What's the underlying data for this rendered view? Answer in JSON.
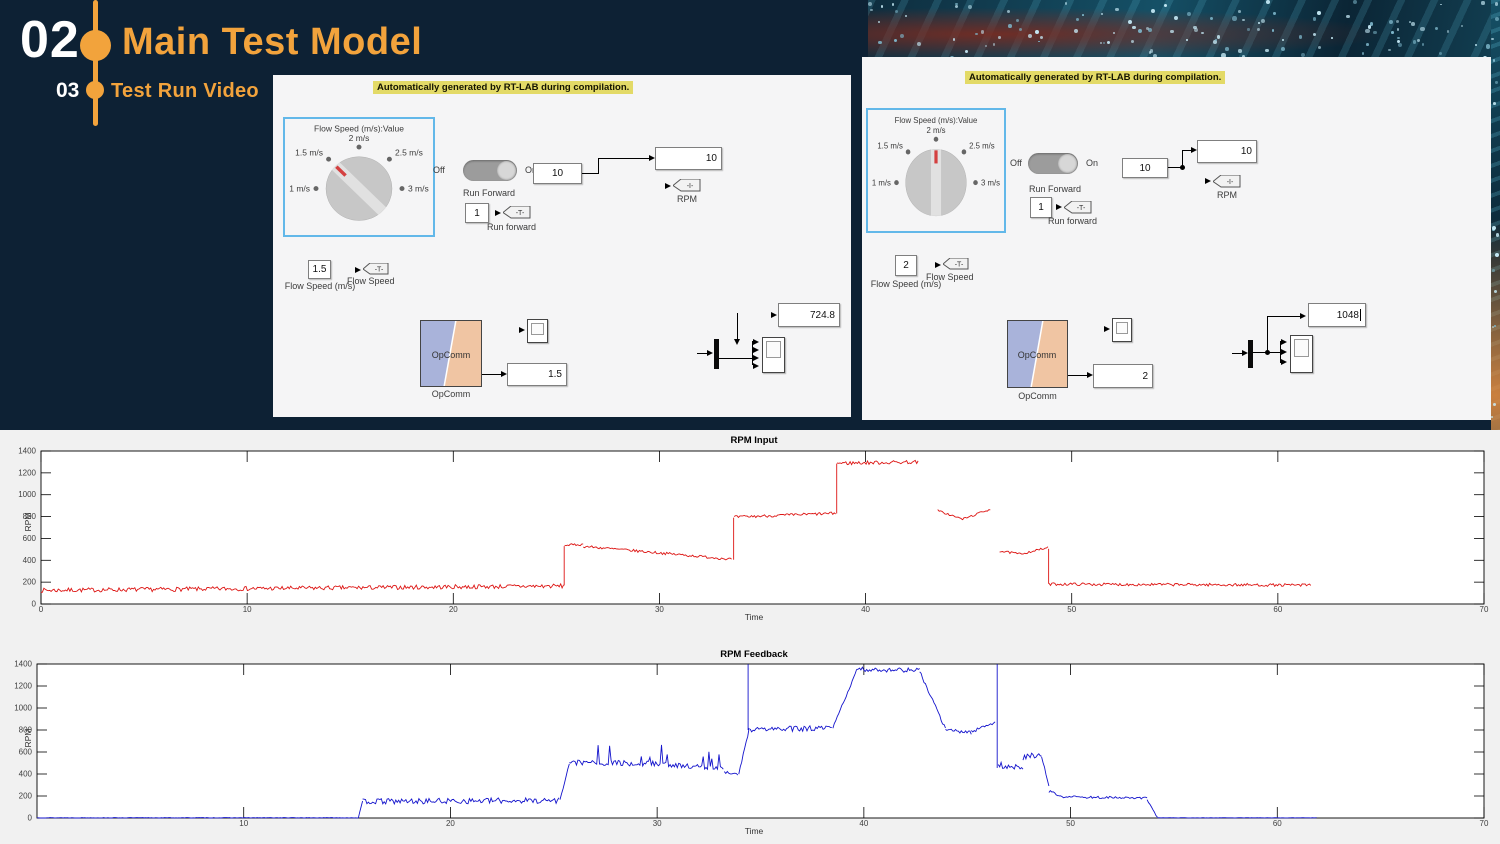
{
  "slide": {
    "number": "02",
    "title": "Main Test Model",
    "sub_number": "03",
    "subtitle": "Test Run Video",
    "accent_color": "#f2a33c",
    "background_color": "#0d2134"
  },
  "panels": {
    "left": {
      "annotation": "Automatically generated by RT-LAB during compilation.",
      "knob": {
        "title": "Flow Speed (m/s):Value",
        "labels": [
          "1 m/s",
          "1.5 m/s",
          "2 m/s",
          "2.5 m/s",
          "3 m/s"
        ],
        "selected": "1.5 m/s",
        "angle_deg": -45
      },
      "toggle": {
        "off": "Off",
        "on": "On",
        "state": "On",
        "label": "Run Forward"
      },
      "run_const": "1",
      "run_tag": "-T-",
      "run_tag_label": "Run forward",
      "rpm_const": "10",
      "rpm_display": "10",
      "rpm_tag": "-I-",
      "rpm_label": "RPM",
      "flow_const": "1.5",
      "flow_const_label": "Flow Speed (m/s)",
      "flow_tag": "-T-",
      "flow_tag_label": "Flow Speed",
      "opcomm_label": "OpComm",
      "opcomm_caption": "OpComm",
      "opcomm_display": "1.5",
      "big_display": "724.8"
    },
    "right": {
      "annotation": "Automatically generated by RT-LAB during compilation.",
      "knob": {
        "title": "Flow Speed (m/s):Value",
        "labels": [
          "1 m/s",
          "1.5 m/s",
          "2 m/s",
          "2.5 m/s",
          "3 m/s"
        ],
        "selected": "2 m/s",
        "angle_deg": 0
      },
      "toggle": {
        "off": "Off",
        "on": "On",
        "state": "On",
        "label": "Run Forward"
      },
      "run_const": "1",
      "run_tag": "-T-",
      "run_tag_label": "Run forward",
      "rpm_const": "10",
      "rpm_display": "10",
      "rpm_tag": "-I-",
      "rpm_label": "RPM",
      "flow_const": "2",
      "flow_const_label": "Flow Speed (m/s)",
      "flow_tag": "-T-",
      "flow_tag_label": "Flow Speed",
      "opcomm_label": "OpComm",
      "opcomm_caption": "OpComm",
      "opcomm_display": "2",
      "big_display": "1048"
    }
  },
  "chart_data": [
    {
      "type": "line",
      "title": "RPM Input",
      "xlabel": "Time",
      "ylabel": "RPM",
      "xlim": [
        0,
        70
      ],
      "ylim": [
        0,
        1400
      ],
      "xticks": [
        0,
        10,
        20,
        30,
        40,
        50,
        60,
        70
      ],
      "yticks": [
        0,
        200,
        400,
        600,
        800,
        1000,
        1200,
        1400
      ],
      "grid": false,
      "color": "#dd1513",
      "seed": 7,
      "segment_format": [
        "x_start",
        "x_end",
        "y_start",
        "y_end",
        "noise_amp",
        "spike_prob",
        "spike_amp"
      ],
      "segments": [
        [
          0,
          25.35,
          125,
          165,
          20,
          0,
          0
        ],
        [
          25.4,
          26.3,
          538,
          545,
          10,
          0,
          0
        ],
        [
          26.3,
          33.5,
          528,
          410,
          12,
          0,
          0
        ],
        [
          33.62,
          38.55,
          795,
          830,
          13,
          0,
          0
        ],
        [
          38.62,
          42.55,
          1288,
          1300,
          17,
          0,
          0
        ],
        [
          43.5,
          44.7,
          855,
          775,
          10,
          0,
          0
        ],
        [
          44.7,
          46.05,
          775,
          868,
          10,
          0,
          0
        ],
        [
          46.5,
          47.5,
          483,
          458,
          10,
          0,
          0
        ],
        [
          47.5,
          48.85,
          458,
          515,
          10,
          0,
          0
        ],
        [
          48.9,
          61.6,
          182,
          172,
          13,
          0,
          0
        ]
      ],
      "vlines": [
        [
          25.38,
          170,
          530
        ],
        [
          33.6,
          405,
          790
        ],
        [
          38.6,
          828,
          1285
        ],
        [
          48.88,
          505,
          185
        ]
      ]
    },
    {
      "type": "line",
      "title": "RPM Feedback",
      "xlabel": "Time",
      "ylabel": "RPM",
      "xlim": [
        0,
        70
      ],
      "ylim": [
        0,
        1400
      ],
      "xticks": [
        10,
        20,
        30,
        40,
        50,
        60,
        70
      ],
      "yticks": [
        0,
        200,
        400,
        600,
        800,
        1000,
        1200,
        1400
      ],
      "grid": false,
      "color": "#1414cc",
      "seed": 13,
      "segment_format": [
        "x_start",
        "x_end",
        "y_start",
        "y_end",
        "noise_amp",
        "spike_prob",
        "spike_amp"
      ],
      "segments": [
        [
          0,
          15.55,
          2,
          2,
          2,
          0,
          0
        ],
        [
          15.55,
          15.75,
          5,
          150,
          5,
          0,
          0
        ],
        [
          15.75,
          25.25,
          150,
          160,
          26,
          0,
          0
        ],
        [
          25.3,
          25.75,
          170,
          490,
          10,
          0,
          0
        ],
        [
          25.75,
          30,
          505,
          495,
          25,
          0.1,
          190
        ],
        [
          30,
          33.2,
          490,
          450,
          22,
          0.08,
          170
        ],
        [
          33.25,
          33.9,
          415,
          392,
          14,
          0,
          0
        ],
        [
          33.95,
          34.45,
          400,
          810,
          12,
          0,
          0
        ],
        [
          34.5,
          38.45,
          805,
          815,
          26,
          0,
          0
        ],
        [
          38.5,
          39.65,
          820,
          1340,
          12,
          0,
          0
        ],
        [
          39.65,
          42.7,
          1350,
          1345,
          22,
          0,
          0
        ],
        [
          42.7,
          43.95,
          1330,
          810,
          14,
          0,
          0
        ],
        [
          43.95,
          45.2,
          800,
          778,
          18,
          0,
          0
        ],
        [
          45.2,
          46.35,
          785,
          875,
          16,
          0,
          0
        ],
        [
          46.5,
          47.7,
          480,
          465,
          28,
          0.1,
          150
        ],
        [
          47.7,
          48.6,
          555,
          565,
          30,
          0.1,
          90
        ],
        [
          48.6,
          48.95,
          560,
          300,
          12,
          0,
          0
        ],
        [
          48.95,
          49.45,
          240,
          210,
          14,
          0,
          0
        ],
        [
          49.45,
          53.7,
          195,
          178,
          11,
          0,
          0
        ],
        [
          53.7,
          54.2,
          170,
          4,
          6,
          0,
          0
        ],
        [
          54.2,
          61.9,
          2,
          2,
          1,
          0,
          0
        ]
      ],
      "vlines": [
        [
          34.4,
          800,
          1398
        ],
        [
          46.45,
          455,
          1398
        ]
      ]
    }
  ],
  "decor": {
    "dot_color_bright": "#c8ecf8",
    "dot_color_dim": "#7fb8cc",
    "band_dots": 120,
    "strip_dots": 16
  }
}
